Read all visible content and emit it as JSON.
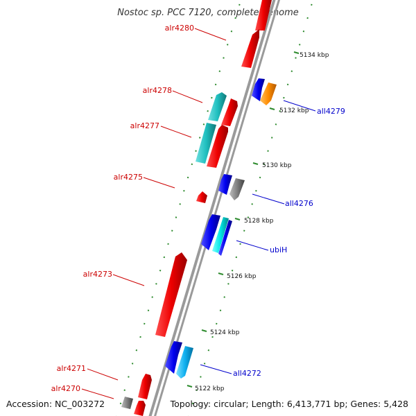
{
  "title": "Nostoc sp. PCC 7120, complete genome",
  "footer": {
    "accession": "Accession: NC_003272",
    "topology": "Topology: circular; Length: 6,413,771 bp; Genes: 5,428"
  },
  "colors": {
    "backbone": "#999999",
    "ticks": "#228b22",
    "label_forward": "#cc0000",
    "label_reverse": "#0000cc"
  },
  "scale_ticks": [
    "5122 kbp",
    "5124 kbp",
    "5126 kbp",
    "5128 kbp",
    "5130 kbp",
    "5132 kbp",
    "5134 kbp"
  ],
  "genes": [
    {
      "name": "alr4280",
      "strand": "forward"
    },
    {
      "name": "alr4278",
      "strand": "forward"
    },
    {
      "name": "alr4277",
      "strand": "forward"
    },
    {
      "name": "alr4275",
      "strand": "forward"
    },
    {
      "name": "alr4273",
      "strand": "forward"
    },
    {
      "name": "alr4271",
      "strand": "forward"
    },
    {
      "name": "alr4270",
      "strand": "forward"
    },
    {
      "name": "all4279",
      "strand": "reverse"
    },
    {
      "name": "all4276",
      "strand": "reverse"
    },
    {
      "name": "ubiH",
      "strand": "reverse"
    },
    {
      "name": "all4272",
      "strand": "reverse"
    }
  ]
}
